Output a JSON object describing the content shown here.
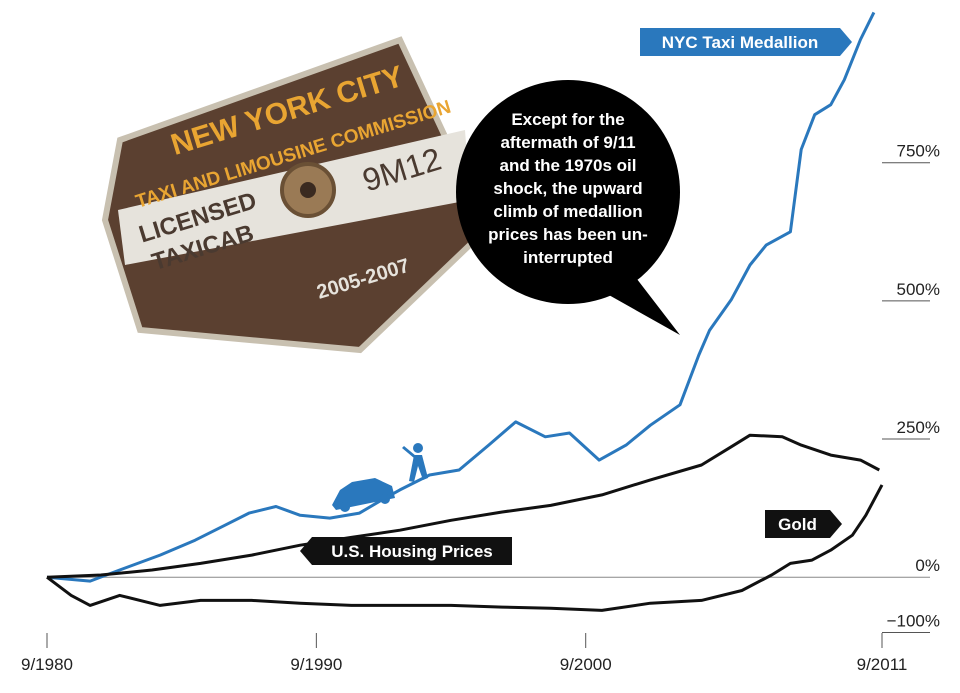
{
  "chart_data": {
    "type": "line",
    "xlim": [
      1980.7,
      2011.7
    ],
    "ylim": [
      -110,
      1030
    ],
    "xticks": [
      {
        "value": 1980.7,
        "label": "9/1980"
      },
      {
        "value": 1990.7,
        "label": "9/1990"
      },
      {
        "value": 2000.7,
        "label": "9/2000"
      },
      {
        "value": 2011.7,
        "label": "9/2011"
      }
    ],
    "yticks": [
      {
        "value": 750,
        "label": "750%"
      },
      {
        "value": 500,
        "label": "500%"
      },
      {
        "value": 250,
        "label": "250%"
      },
      {
        "value": 0,
        "label": "0%"
      },
      {
        "value": -100,
        "label": "−100%"
      }
    ],
    "series": [
      {
        "name": "NYC Taxi Medallion",
        "color": "#2a78bd",
        "x": [
          1980.7,
          1982.3,
          1983.4,
          1984.9,
          1986.2,
          1987.3,
          1988.2,
          1989.2,
          1990.1,
          1991.2,
          1992.3,
          1993.1,
          1993.8,
          1994.9,
          1996.0,
          1997.1,
          1998.1,
          1999.2,
          2000.1,
          2001.2,
          2002.2,
          2003.1,
          2004.2,
          2004.9,
          2005.3,
          2006.1,
          2006.8,
          2007.4,
          2008.3,
          2008.7,
          2009.2,
          2009.8,
          2010.3,
          2010.9,
          2011.4
        ],
        "values": [
          0,
          -7,
          13,
          40,
          67,
          94,
          116,
          128,
          112,
          107,
          116,
          139,
          158,
          185,
          194,
          239,
          281,
          254,
          261,
          212,
          239,
          275,
          312,
          402,
          447,
          502,
          565,
          601,
          625,
          774,
          837,
          855,
          900,
          973,
          1022
        ]
      },
      {
        "name": "U.S. Housing Prices",
        "color": "#111111",
        "x": [
          1980.7,
          1982.7,
          1984.6,
          1986.4,
          1988.3,
          1990.1,
          1992.0,
          1993.8,
          1995.7,
          1997.6,
          1999.4,
          2001.3,
          2003.1,
          2005.0,
          2006.1,
          2006.8,
          2008.0,
          2008.7,
          2009.8,
          2010.9,
          2011.6
        ],
        "values": [
          0,
          4,
          13,
          25,
          40,
          58,
          72,
          85,
          103,
          118,
          130,
          149,
          176,
          203,
          236,
          257,
          254,
          239,
          221,
          212,
          194
        ]
      },
      {
        "name": "Gold",
        "color": "#111111",
        "x": [
          1980.7,
          1981.6,
          1982.3,
          1983.4,
          1984.9,
          1986.4,
          1988.3,
          1990.1,
          1992.0,
          1993.8,
          1995.7,
          1997.6,
          1999.4,
          2001.3,
          2003.1,
          2005.0,
          2006.5,
          2007.6,
          2008.3,
          2009.1,
          2009.8,
          2010.6,
          2011.1,
          2011.7
        ],
        "values": [
          0,
          -33,
          -51,
          -33,
          -51,
          -42,
          -42,
          -47,
          -51,
          -51,
          -51,
          -54,
          -56,
          -60,
          -47,
          -42,
          -24,
          4,
          25,
          31,
          49,
          76,
          112,
          167
        ]
      }
    ],
    "annotation": [
      "Except for the",
      "aftermath of 9/11",
      "and the 1970s oil",
      "shock, the upward",
      "climb of medallion",
      "prices has been un-",
      "interrupted"
    ],
    "illustration": {
      "top": "NEW YORK CITY",
      "band": "TAXI AND LIMOUSINE COMMISSION",
      "licensed": "LICENSED",
      "taxicab": "TAXICAB",
      "number": "9M12",
      "years": "2005-2007"
    }
  }
}
